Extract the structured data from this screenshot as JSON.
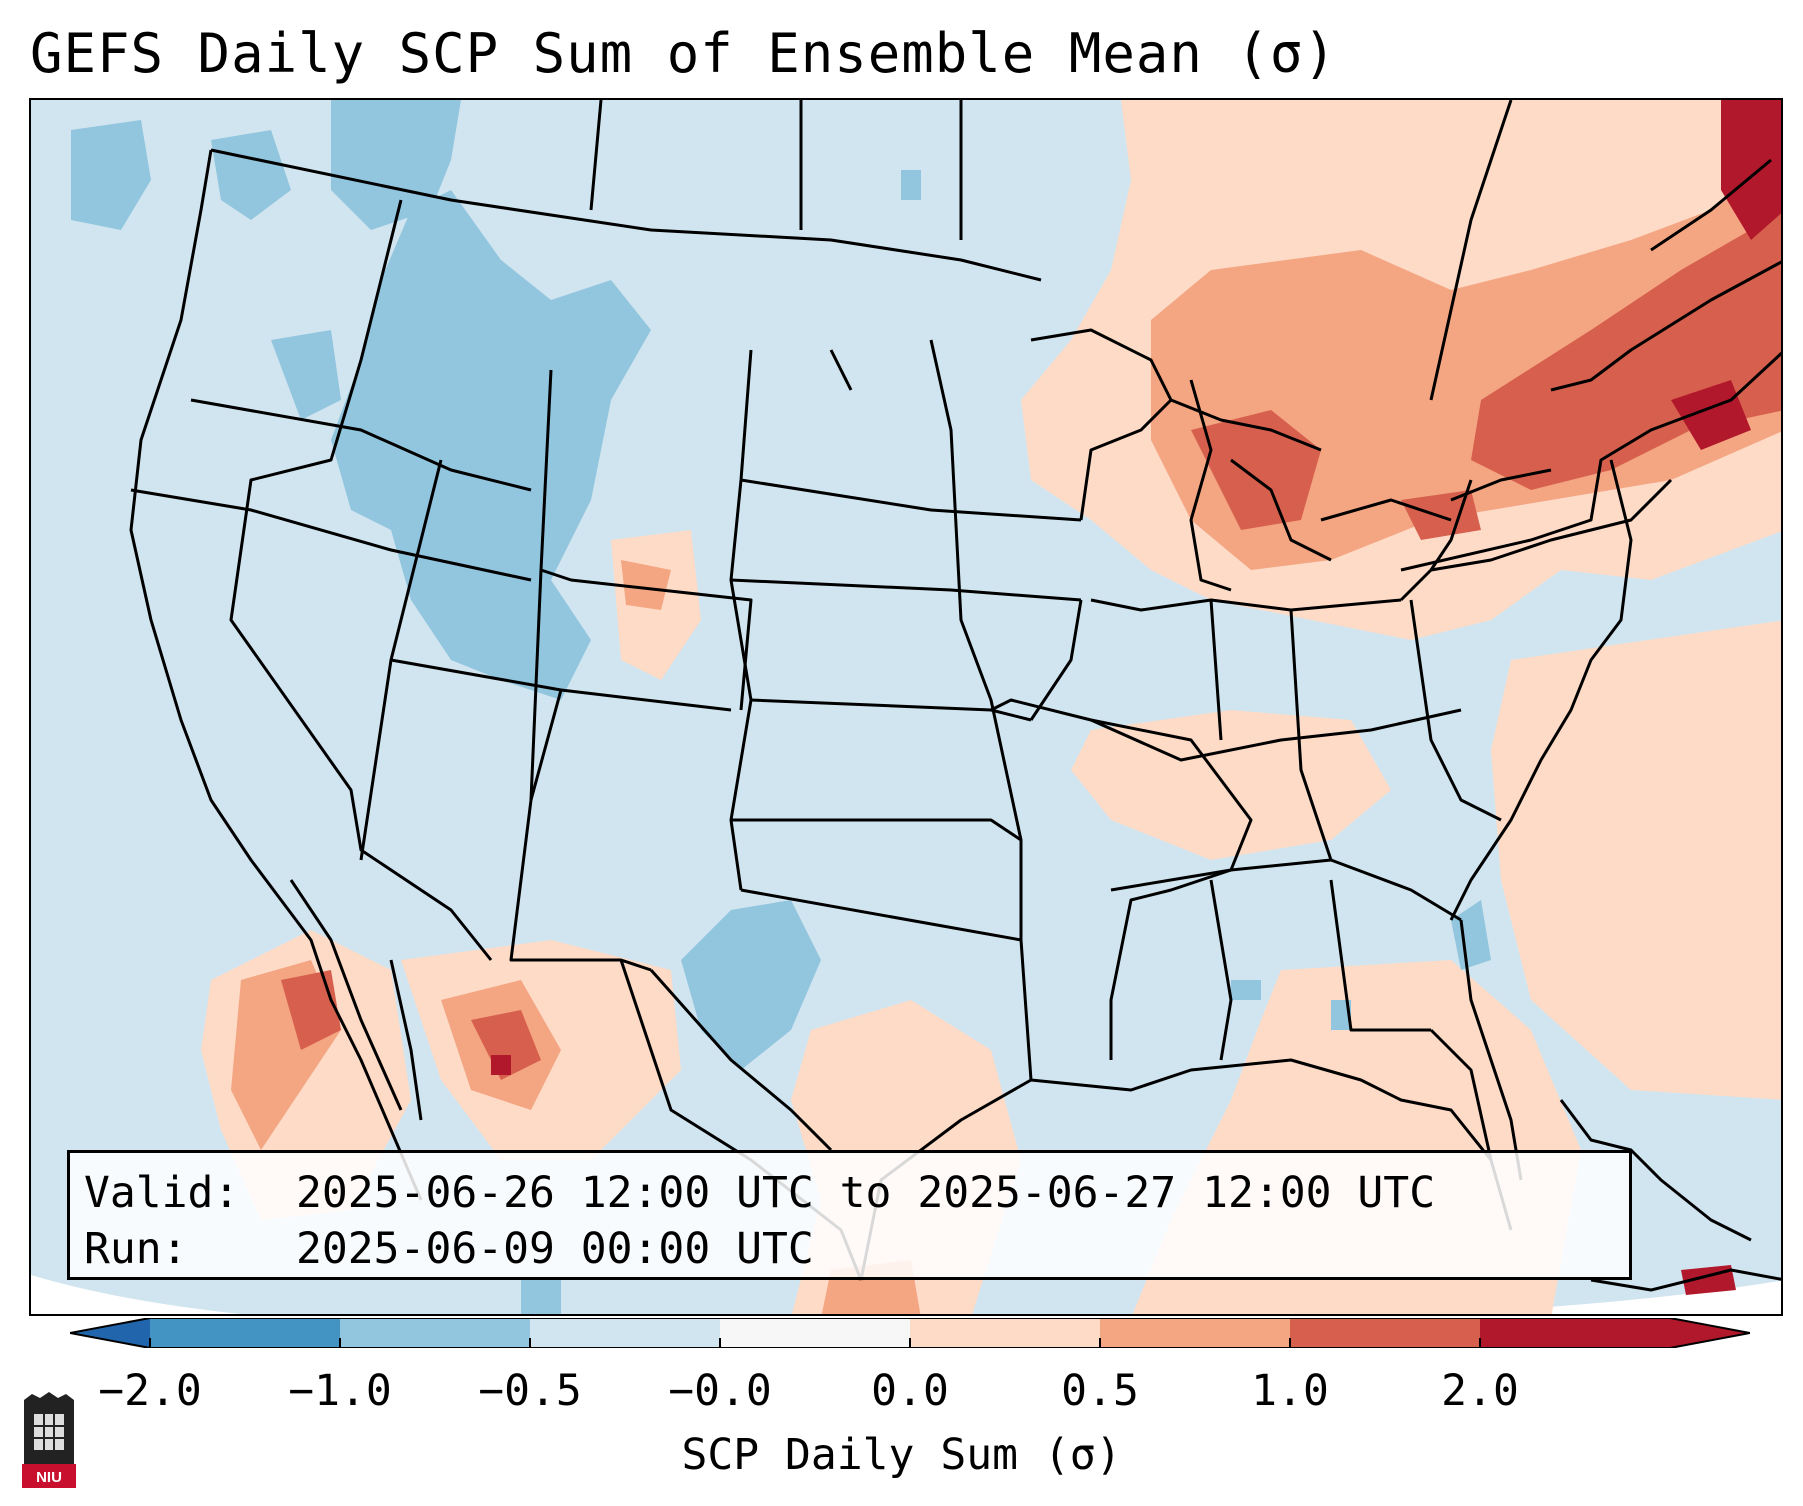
{
  "title": "GEFS Daily SCP Sum of Ensemble Mean (σ)",
  "info_box": {
    "valid_key": "Valid:",
    "valid_value": "2025-06-26 12:00 UTC to 2025-06-27 12:00 UTC",
    "run_key": "Run:",
    "run_value": "2025-06-09 00:00 UTC"
  },
  "colorbar": {
    "label": "SCP Daily Sum (σ)",
    "ticks": [
      "−2.0",
      "−1.0",
      "−0.5",
      "−0.0",
      "0.0",
      "0.5",
      "1.0",
      "2.0"
    ],
    "segment_colors": [
      "#4393c3",
      "#92c5de",
      "#d1e5f0",
      "#f7f7f7",
      "#fddbc7",
      "#f4a582",
      "#d6604d",
      "#b2182b"
    ],
    "extend_low_color": "#2166ac",
    "extend_high_color": "#b2182b"
  },
  "map": {
    "ocean_color": "#d1e5f0",
    "positive_light": "#fddbc7",
    "positive_mid": "#f4a582",
    "positive_strong": "#d6604d",
    "positive_max": "#b2182b",
    "negative_light": "#92c5de"
  },
  "logo": {
    "text": "NIU"
  }
}
